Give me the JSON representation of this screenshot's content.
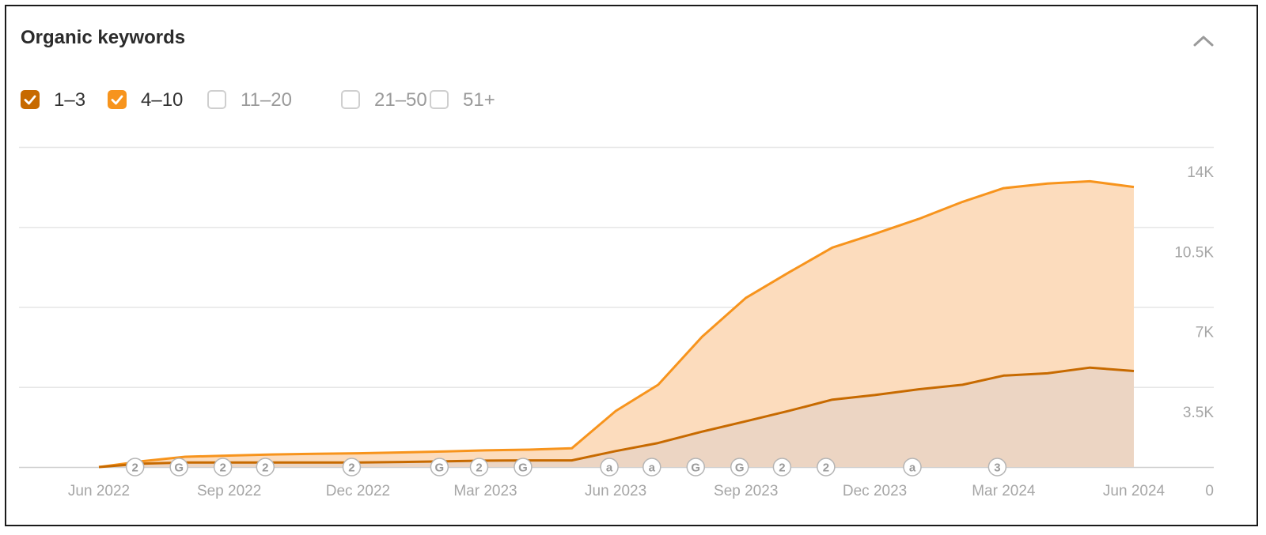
{
  "widget": {
    "title": "Organic keywords",
    "collapse_icon": "chevron-up-icon"
  },
  "legend": [
    {
      "label": "1–3",
      "checked": true,
      "color": "#c76a00"
    },
    {
      "label": "4–10",
      "checked": true,
      "color": "#f7941d"
    },
    {
      "label": "11–20",
      "checked": false
    },
    {
      "label": "21–50",
      "checked": false
    },
    {
      "label": "51+",
      "checked": false
    }
  ],
  "chart_data": {
    "type": "area",
    "stacked": true,
    "x_tick_labels": [
      "Jun 2022",
      "Sep 2022",
      "Dec 2022",
      "Mar 2023",
      "Jun 2023",
      "Sep 2023",
      "Dec 2023",
      "Mar 2024",
      "Jun 2024"
    ],
    "y_tick_labels": [
      "14K",
      "10.5K",
      "7K",
      "3.5K",
      "0"
    ],
    "ylim": [
      0,
      14000
    ],
    "y_axis_position": "right",
    "grid": true,
    "x": [
      "2022-06-01",
      "2022-07-01",
      "2022-08-01",
      "2022-09-01",
      "2022-10-01",
      "2022-11-01",
      "2022-12-01",
      "2023-01-01",
      "2023-02-01",
      "2023-03-01",
      "2023-04-01",
      "2023-05-01",
      "2023-06-01",
      "2023-07-01",
      "2023-08-01",
      "2023-09-01",
      "2023-10-01",
      "2023-11-01",
      "2023-12-01",
      "2024-01-01",
      "2024-02-01",
      "2024-03-01",
      "2024-04-01",
      "2024-05-01",
      "2024-06-01"
    ],
    "series": [
      {
        "name": "1–3",
        "color": "#c76a00",
        "fill": "#ecd5c3",
        "values": [
          0,
          150,
          200,
          200,
          200,
          200,
          200,
          220,
          250,
          280,
          290,
          290,
          700,
          1050,
          1550,
          2000,
          2450,
          2950,
          3150,
          3400,
          3600,
          4000,
          4100,
          4350,
          4200
        ]
      },
      {
        "name": "4–10",
        "color": "#f7941d",
        "fill": "#fcdcbd",
        "values": [
          0,
          100,
          250,
          300,
          350,
          380,
          400,
          420,
          430,
          450,
          470,
          530,
          1750,
          2550,
          4150,
          5400,
          6050,
          6650,
          7050,
          7450,
          8000,
          8200,
          8300,
          8150,
          8050
        ]
      }
    ],
    "annotations": [
      {
        "date": "2022-07-01",
        "label": "2"
      },
      {
        "date": "2022-08-01",
        "label": "G"
      },
      {
        "date": "2022-09-01",
        "label": "2"
      },
      {
        "date": "2022-10-01",
        "label": "2"
      },
      {
        "date": "2022-12-01",
        "label": "2"
      },
      {
        "date": "2023-02-01",
        "label": "G"
      },
      {
        "date": "2023-03-01",
        "label": "2"
      },
      {
        "date": "2023-04-01",
        "label": "G"
      },
      {
        "date": "2023-06-01",
        "label": "a"
      },
      {
        "date": "2023-07-01",
        "label": "a"
      },
      {
        "date": "2023-08-01",
        "label": "G"
      },
      {
        "date": "2023-09-01",
        "label": "G"
      },
      {
        "date": "2023-10-01",
        "label": "2"
      },
      {
        "date": "2023-11-01",
        "label": "2"
      },
      {
        "date": "2024-01-01",
        "label": "a"
      },
      {
        "date": "2024-03-01",
        "label": "3"
      }
    ]
  }
}
